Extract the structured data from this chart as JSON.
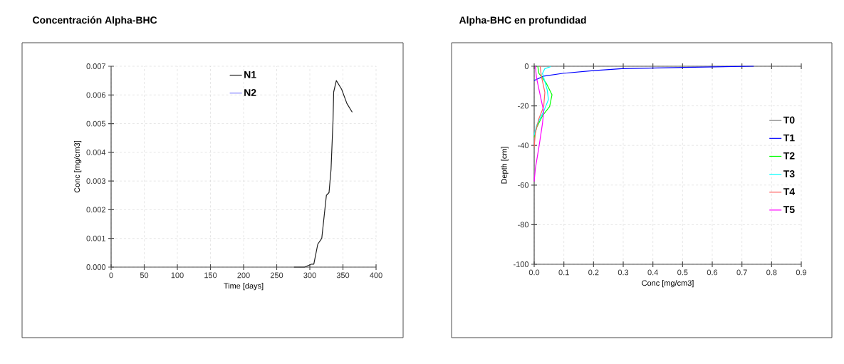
{
  "chart_data": [
    {
      "type": "line",
      "title": "Concentración Alpha-BHC",
      "xlabel": "Time [days]",
      "ylabel": "Conc [mg/cm3]",
      "xlim": [
        0,
        400
      ],
      "xticks": [
        0,
        50,
        100,
        150,
        200,
        250,
        300,
        350,
        400
      ],
      "ylim": [
        0,
        0.007
      ],
      "yticks": [
        {
          "value": 0,
          "label": "0.000"
        },
        {
          "value": 0.001,
          "label": "0.001"
        },
        {
          "value": 0.002,
          "label": "0.002"
        },
        {
          "value": 0.003,
          "label": "0.003"
        },
        {
          "value": 0.004,
          "label": "0.004"
        },
        {
          "value": 0.005,
          "label": "0.005"
        },
        {
          "value": 0.006,
          "label": "0.006"
        },
        {
          "value": 0.007,
          "label": "0.007"
        }
      ],
      "grid": true,
      "legend": "top",
      "marker": "none",
      "line_style": "solid",
      "series": [
        {
          "name": "N1",
          "color": "#202020",
          "x": [
            276,
            292,
            302,
            306,
            312,
            318,
            325,
            329,
            332,
            335,
            336,
            340,
            348,
            356,
            364
          ],
          "values": [
            0,
            0,
            0.0001,
            0.0001,
            0.0008,
            0.001,
            0.0025,
            0.0026,
            0.0034,
            0.0051,
            0.0061,
            0.0065,
            0.0062,
            0.0057,
            0.0054
          ]
        },
        {
          "name": "N2",
          "color": "#8080ff"
        }
      ]
    },
    {
      "type": "line",
      "title": "Alpha-BHC en profundidad",
      "xlabel": "Conc [mg/cm3]",
      "ylabel": "Depth [cm]",
      "xlim": [
        0,
        0.9
      ],
      "xticks": [
        {
          "value": 0,
          "label": "0.0"
        },
        {
          "value": 0.1,
          "label": "0.1"
        },
        {
          "value": 0.2,
          "label": "0.2"
        },
        {
          "value": 0.3,
          "label": "0.3"
        },
        {
          "value": 0.4,
          "label": "0.4"
        },
        {
          "value": 0.5,
          "label": "0.5"
        },
        {
          "value": 0.6,
          "label": "0.6"
        },
        {
          "value": 0.7,
          "label": "0.7"
        },
        {
          "value": 0.8,
          "label": "0.8"
        },
        {
          "value": 0.9,
          "label": "0.9"
        }
      ],
      "ylim": [
        -100,
        0
      ],
      "yticks": [
        -100,
        -80,
        -60,
        -40,
        -20,
        0
      ],
      "grid": true,
      "legend": "right",
      "marker": "none",
      "line_style": "solid",
      "series": [
        {
          "name": "T0",
          "color": "#808080"
        },
        {
          "name": "T1",
          "color": "#0000ff",
          "x": [
            0.74,
            0.504,
            0.296,
            0.2,
            0.096,
            0.032,
            0
          ],
          "values": [
            0,
            -0.6,
            -1.2,
            -2.2,
            -3.6,
            -5,
            -7.2
          ]
        },
        {
          "name": "T2",
          "color": "#00ff00",
          "x": [
            0.012,
            0.016,
            0.04,
            0.06,
            0.052,
            0.028,
            0.008,
            0
          ],
          "values": [
            0,
            -3.6,
            -8.4,
            -14.4,
            -20.4,
            -25,
            -31,
            -36
          ]
        },
        {
          "name": "T3",
          "color": "#00ffff",
          "x": [
            0.056,
            0.036,
            0.028,
            0.044,
            0.048,
            0.032,
            0.008,
            0
          ],
          "values": [
            -0.2,
            -1.2,
            -3.6,
            -12,
            -16.8,
            -22.8,
            -30,
            -34.8
          ]
        },
        {
          "name": "T4",
          "color": "#ff6060",
          "x": [
            0.02,
            0.024,
            0.036,
            0.032,
            0.016,
            0.004,
            0
          ],
          "values": [
            0,
            -4.8,
            -13.2,
            -20.4,
            -26.4,
            -33.6,
            -40.8
          ]
        },
        {
          "name": "T5",
          "color": "#ff00ff",
          "x": [
            0.004,
            0.008,
            0.02,
            0.032,
            0.028,
            0.016,
            0.004,
            0
          ],
          "values": [
            0,
            -6,
            -14.4,
            -22.8,
            -28.8,
            -40.8,
            -51.6,
            -58.2
          ]
        }
      ]
    }
  ]
}
